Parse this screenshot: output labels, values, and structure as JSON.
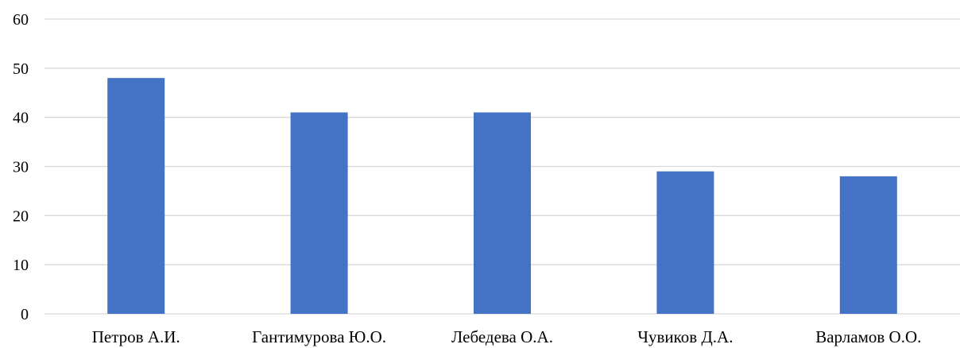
{
  "chart_data": {
    "type": "bar",
    "title": "",
    "xlabel": "",
    "ylabel": "",
    "categories": [
      "Петров А.И.",
      "Гантимурова Ю.О.",
      "Лебедева О.А.",
      "Чувиков Д.А.",
      "Варламов О.О."
    ],
    "values": [
      48,
      41,
      41,
      29,
      28
    ],
    "ylim": [
      0,
      60
    ],
    "yticks": [
      0,
      10,
      20,
      30,
      40,
      50,
      60
    ],
    "grid": true,
    "legend": "none",
    "bar_color": "#4472c4",
    "grid_color": "#d9d9d9"
  }
}
